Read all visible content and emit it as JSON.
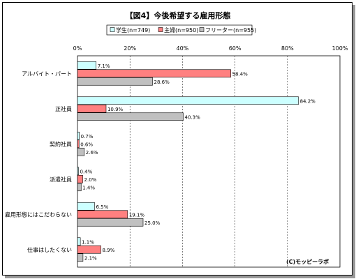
{
  "chart_data": {
    "type": "bar",
    "orientation": "horizontal",
    "title": "【図4】今後希望する雇用形態",
    "categories": [
      "アルバイト・パート",
      "正社員",
      "契約社員",
      "派遣社員",
      "雇用形態にはこだわらない",
      "仕事はしたくない"
    ],
    "series": [
      {
        "name": "学生(n=749)",
        "color": "#ccffff",
        "values": [
          7.1,
          84.2,
          0.7,
          0.4,
          6.5,
          1.1
        ],
        "labels": [
          "7.1%",
          "84.2%",
          "0.7%",
          "0.4%",
          "6.5%",
          "1.1%"
        ]
      },
      {
        "name": "主婦(n=950)",
        "color": "#ff8080",
        "values": [
          58.4,
          10.9,
          0.6,
          2.0,
          19.1,
          8.9
        ],
        "labels": [
          "58.4%",
          "10.9%",
          "0.6%",
          "2.0%",
          "19.1%",
          "8.9%"
        ]
      },
      {
        "name": "フリーター(n=955)",
        "color": "#c0c0c0",
        "values": [
          28.6,
          40.3,
          2.6,
          1.4,
          25.0,
          2.1
        ],
        "labels": [
          "28.6%",
          "40.3%",
          "2.6%",
          "1.4%",
          "25.0%",
          "2.1%"
        ]
      }
    ],
    "xlim": [
      0,
      100
    ],
    "ticks": [
      "0%",
      "20%",
      "40%",
      "60%",
      "80%",
      "100%"
    ],
    "grid": true,
    "legend_position": "top"
  },
  "credit": "(C)モッピーラボ"
}
